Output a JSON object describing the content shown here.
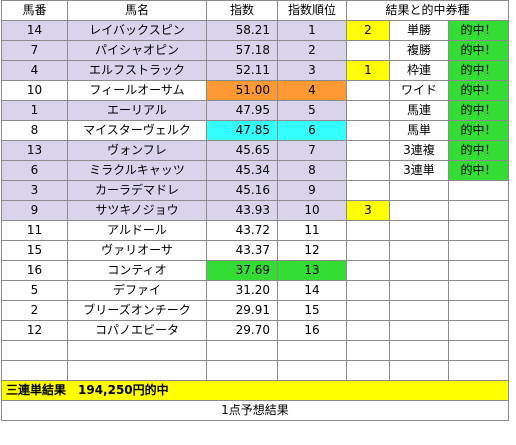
{
  "headers": [
    "馬番",
    "馬名",
    "指数",
    "指数順位",
    "結果と的中券種"
  ],
  "colors": {
    "top": "#d9d4ec",
    "orange": "#ff9933",
    "cyan": "#33ffff",
    "green": "#33dd33",
    "yellow": "#ffff00",
    "white": "#ffffff"
  },
  "rows": [
    {
      "no": "14",
      "name": "レイバックスピン",
      "index": "58.21",
      "rank": "1",
      "result": "2",
      "ticket": "単勝",
      "hit": "的中！",
      "hl": "top"
    },
    {
      "no": "7",
      "name": "パイシャオピン",
      "index": "57.18",
      "rank": "2",
      "result": "",
      "ticket": "複勝",
      "hit": "的中！",
      "hl": "top"
    },
    {
      "no": "4",
      "name": "エルフストラック",
      "index": "52.11",
      "rank": "3",
      "result": "1",
      "ticket": "枠連",
      "hit": "的中！",
      "hl": "top"
    },
    {
      "no": "10",
      "name": "フィールオーサム",
      "index": "51.00",
      "rank": "4",
      "result": "",
      "ticket": "ワイド",
      "hit": "的中！",
      "hl": "orange"
    },
    {
      "no": "1",
      "name": "エーリアル",
      "index": "47.95",
      "rank": "5",
      "result": "",
      "ticket": "馬連",
      "hit": "的中！",
      "hl": "top"
    },
    {
      "no": "8",
      "name": "マイスターヴェルク",
      "index": "47.85",
      "rank": "6",
      "result": "",
      "ticket": "馬単",
      "hit": "的中！",
      "hl": "cyan"
    },
    {
      "no": "13",
      "name": "ヴォンフレ",
      "index": "45.65",
      "rank": "7",
      "result": "",
      "ticket": "3連複",
      "hit": "的中！",
      "hl": "top"
    },
    {
      "no": "6",
      "name": "ミラクルキャッツ",
      "index": "45.34",
      "rank": "8",
      "result": "",
      "ticket": "3連単",
      "hit": "的中！",
      "hl": "top"
    },
    {
      "no": "3",
      "name": "カーラデマドレ",
      "index": "45.16",
      "rank": "9",
      "result": "",
      "ticket": "",
      "hit": "",
      "hl": "top"
    },
    {
      "no": "9",
      "name": "サツキノジョウ",
      "index": "43.93",
      "rank": "10",
      "result": "3",
      "ticket": "",
      "hit": "",
      "hl": "top"
    },
    {
      "no": "11",
      "name": "アルドール",
      "index": "43.72",
      "rank": "11",
      "result": "",
      "ticket": "",
      "hit": "",
      "hl": "none"
    },
    {
      "no": "15",
      "name": "ヴァリオーサ",
      "index": "43.37",
      "rank": "12",
      "result": "",
      "ticket": "",
      "hit": "",
      "hl": "none"
    },
    {
      "no": "16",
      "name": "コンティオ",
      "index": "37.69",
      "rank": "13",
      "result": "",
      "ticket": "",
      "hit": "",
      "hl": "green"
    },
    {
      "no": "5",
      "name": "デファイ",
      "index": "31.20",
      "rank": "14",
      "result": "",
      "ticket": "",
      "hit": "",
      "hl": "none"
    },
    {
      "no": "2",
      "name": "ブリーズオンチーク",
      "index": "29.91",
      "rank": "15",
      "result": "",
      "ticket": "",
      "hit": "",
      "hl": "none"
    },
    {
      "no": "12",
      "name": "コパノエビータ",
      "index": "29.70",
      "rank": "16",
      "result": "",
      "ticket": "",
      "hit": "",
      "hl": "none"
    },
    {
      "no": "",
      "name": "",
      "index": "",
      "rank": "",
      "result": "",
      "ticket": "",
      "hit": "",
      "hl": "none"
    },
    {
      "no": "",
      "name": "",
      "index": "",
      "rank": "",
      "result": "",
      "ticket": "",
      "hit": "",
      "hl": "none"
    }
  ],
  "banner": "三連単結果　194,250円的中",
  "footer": "1点予想結果"
}
